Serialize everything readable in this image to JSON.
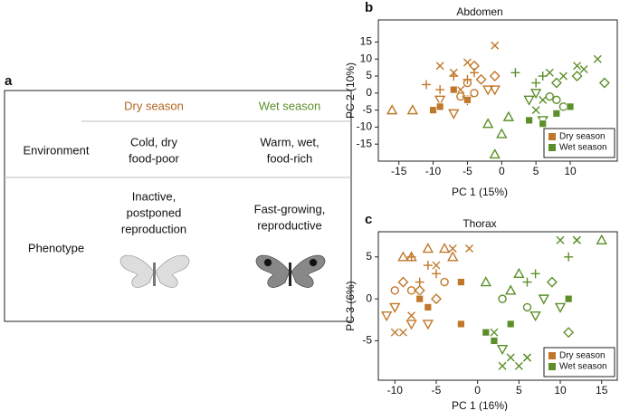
{
  "panel_labels": [
    "a",
    "b",
    "c"
  ],
  "table": {
    "columns": [
      "Dry season",
      "Wet season"
    ],
    "column_colors": [
      "#b0651d",
      "#5c8f2a"
    ],
    "rows": [
      {
        "label": "Environment",
        "cells": [
          [
            "Cold, dry",
            "food-poor"
          ],
          [
            "Warm, wet,",
            "food-rich"
          ]
        ]
      },
      {
        "label": "Phenotype",
        "cells": [
          [
            "Inactive,",
            "postponed",
            "reproduction"
          ],
          [
            "Fast-growing,",
            "reproductive"
          ]
        ]
      }
    ]
  },
  "chart_data": [
    {
      "type": "scatter",
      "title": "Abdomen",
      "xlabel": "PC 1 (15%)",
      "ylabel": "PC 2 (10%)",
      "xlim": [
        -18,
        17
      ],
      "ylim": [
        -20,
        21.5
      ],
      "xticks": [
        -15,
        -10,
        -5,
        0,
        5,
        10
      ],
      "yticks": [
        -15,
        -10,
        -5,
        0,
        5,
        10,
        15
      ],
      "legend": "bottom right",
      "series": [
        {
          "name": "Dry season",
          "color": "#c0772a",
          "x": [
            -11,
            -9,
            -7,
            -5,
            -4,
            -9,
            -7,
            -5,
            -1,
            -6,
            -3,
            -4,
            -1,
            -2,
            -1,
            -9,
            -5,
            -7,
            -16,
            -13,
            -10,
            -9,
            -5,
            -7,
            -4,
            -6,
            -5
          ],
          "values": [
            2.5,
            1,
            5,
            4,
            6,
            8,
            6,
            9,
            14,
            1,
            4,
            8,
            5,
            1,
            1,
            -2,
            -2,
            -6,
            -5,
            -5,
            -5,
            -4,
            -2,
            1,
            0,
            -1,
            3
          ],
          "markers": [
            "+",
            "+",
            "+",
            "+",
            "+",
            "x",
            "x",
            "x",
            "x",
            "x",
            "diamond",
            "diamond",
            "diamond",
            "triangle-down",
            "triangle-down",
            "triangle-down",
            "triangle-down",
            "triangle-down",
            "triangle",
            "triangle",
            "square",
            "square",
            "square",
            "square",
            "circle",
            "circle",
            "circle"
          ]
        },
        {
          "name": "Wet season",
          "color": "#5c8f2a",
          "x": [
            5,
            6,
            2,
            7,
            11,
            12,
            14,
            9,
            5,
            6,
            8,
            15,
            11,
            7,
            8,
            9,
            4,
            5,
            6,
            -2,
            0,
            1,
            -1,
            4,
            6,
            8,
            10
          ],
          "values": [
            3,
            5,
            6,
            6,
            8,
            7,
            10,
            5,
            -5,
            -2,
            3,
            3,
            5,
            -1,
            -2,
            -4,
            -2,
            0,
            -8,
            -9,
            -12,
            -7,
            -18,
            -8,
            -9,
            -6,
            -4
          ],
          "markers": [
            "+",
            "+",
            "+",
            "x",
            "x",
            "x",
            "x",
            "x",
            "x",
            "x",
            "diamond",
            "diamond",
            "diamond",
            "circle",
            "circle",
            "circle",
            "triangle-down",
            "triangle-down",
            "triangle-down",
            "triangle",
            "triangle",
            "triangle",
            "triangle",
            "square",
            "square",
            "square",
            "square"
          ]
        }
      ]
    },
    {
      "type": "scatter",
      "title": "Thorax",
      "xlabel": "PC 1 (16%)",
      "ylabel": "PC 3 (6%)",
      "xlim": [
        -12,
        17
      ],
      "ylim": [
        -9.7,
        8
      ],
      "xticks": [
        -10,
        -5,
        0,
        5,
        10,
        15
      ],
      "yticks": [
        -5,
        0,
        5
      ],
      "legend": "bottom right",
      "series": [
        {
          "name": "Dry season",
          "color": "#c0772a",
          "x": [
            -8,
            -6,
            -5,
            -7,
            -9,
            -10,
            -8,
            -5,
            -3,
            -1,
            -9,
            -8,
            -6,
            -4,
            -7,
            -5,
            -9,
            -10,
            -8,
            -11,
            -6,
            -2,
            -2,
            -7,
            -6,
            -4,
            -10,
            -8,
            -3
          ],
          "values": [
            5,
            4,
            3,
            2,
            -4,
            -4,
            -2,
            4,
            6,
            6,
            5,
            5,
            6,
            6,
            1,
            0,
            2,
            -1,
            -3,
            -2,
            -3,
            -3,
            2,
            0,
            -1,
            2,
            1,
            1,
            5
          ],
          "markers": [
            "+",
            "+",
            "+",
            "+",
            "x",
            "x",
            "x",
            "x",
            "x",
            "x",
            "triangle",
            "triangle",
            "triangle",
            "triangle",
            "diamond",
            "diamond",
            "diamond",
            "triangle-down",
            "triangle-down",
            "triangle-down",
            "triangle-down",
            "square",
            "square",
            "square",
            "square",
            "circle",
            "circle",
            "circle",
            "triangle"
          ]
        },
        {
          "name": "Wet season",
          "color": "#5c8f2a",
          "x": [
            7,
            11,
            6,
            10,
            12,
            15,
            5,
            6,
            3,
            2,
            9,
            11,
            4,
            1,
            3,
            6,
            5,
            7,
            10,
            1,
            2,
            4,
            11,
            3,
            12,
            8,
            4,
            6
          ],
          "values": [
            3,
            5,
            2,
            7,
            7,
            7,
            -8,
            -7,
            -8,
            -4,
            2,
            -4,
            1,
            2,
            0,
            -1,
            3,
            -2,
            -1,
            -4,
            -5,
            -3,
            0,
            -6,
            7,
            0,
            -7,
            -7
          ],
          "markers": [
            "+",
            "+",
            "+",
            "x",
            "x",
            "triangle",
            "x",
            "x",
            "x",
            "x",
            "diamond",
            "diamond",
            "triangle",
            "triangle",
            "circle",
            "circle",
            "triangle",
            "triangle-down",
            "triangle-down",
            "square",
            "square",
            "square",
            "square",
            "triangle-down",
            "x",
            "triangle-down",
            "x",
            "x"
          ]
        }
      ]
    }
  ]
}
